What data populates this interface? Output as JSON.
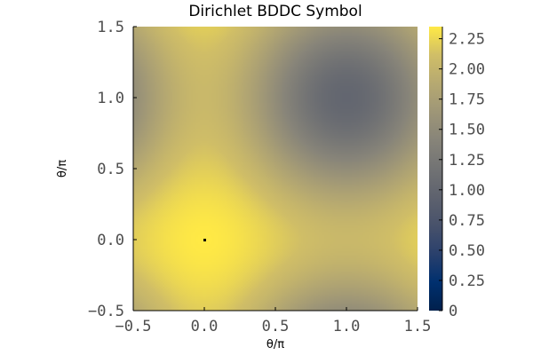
{
  "chart_data": {
    "type": "heatmap",
    "title": "Dirichlet BDDC Symbol",
    "xlabel": "θ/π",
    "ylabel": "θ/π",
    "xlim": [
      -0.5,
      1.5
    ],
    "ylim": [
      -0.5,
      1.5
    ],
    "x_ticks": [
      "−0.5",
      "0.0",
      "0.5",
      "1.0",
      "1.5"
    ],
    "y_ticks": [
      "−0.5",
      "0.0",
      "0.5",
      "1.0",
      "1.5"
    ],
    "colorbar": {
      "colormap": "cividis",
      "range": [
        0,
        2.35
      ],
      "ticks": [
        "0",
        "0.25",
        "0.50",
        "0.75",
        "1.00",
        "1.25",
        "1.50",
        "1.75",
        "2.00",
        "2.25"
      ],
      "tick_values": [
        0,
        0.25,
        0.5,
        0.75,
        1.0,
        1.25,
        1.5,
        1.75,
        2.0,
        2.25
      ]
    },
    "field": {
      "description_values": {
        "max_at": [
          0.0,
          0.0
        ],
        "max_value": 2.35,
        "min_at": [
          1.0,
          1.0
        ],
        "min_value": 1.0,
        "singular_point_at": [
          0.0,
          0.0
        ],
        "singular_value": 0.0
      }
    }
  }
}
